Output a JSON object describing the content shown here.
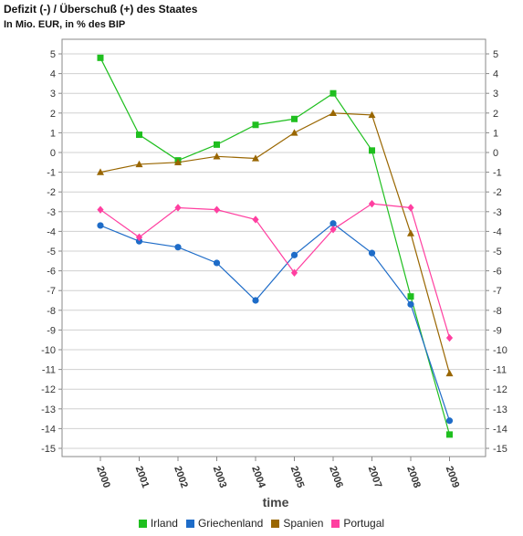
{
  "header": {
    "title": "Defizit (-) / Überschuß (+) des Staates",
    "subtitle": "In Mio. EUR, in % des BIP"
  },
  "chart_data": {
    "type": "line",
    "title": "Defizit (-) / Überschuß (+) des Staates",
    "subtitle": "In Mio. EUR, in % des BIP",
    "xlabel": "time",
    "ylabel": "",
    "ylim": [
      -15,
      5
    ],
    "yticks": [
      5,
      4,
      3,
      2,
      1,
      0,
      -1,
      -2,
      -3,
      -4,
      -5,
      -6,
      -7,
      -8,
      -9,
      -10,
      -11,
      -12,
      -13,
      -14,
      -15
    ],
    "categories": [
      "2000",
      "2001",
      "2002",
      "2003",
      "2004",
      "2005",
      "2006",
      "2007",
      "2008",
      "2009"
    ],
    "grid": "horizontal",
    "legend_position": "bottom",
    "series": [
      {
        "name": "Irland",
        "color": "#1fbf1f",
        "marker": "square",
        "values": [
          4.8,
          0.9,
          -0.4,
          0.4,
          1.4,
          1.7,
          3.0,
          0.1,
          -7.3,
          -14.3
        ]
      },
      {
        "name": "Griechenland",
        "color": "#1e6cc8",
        "marker": "circle",
        "values": [
          -3.7,
          -4.5,
          -4.8,
          -5.6,
          -7.5,
          -5.2,
          -3.6,
          -5.1,
          -7.7,
          -13.6
        ]
      },
      {
        "name": "Spanien",
        "color": "#996600",
        "marker": "triangle",
        "values": [
          -1.0,
          -0.6,
          -0.5,
          -0.2,
          -0.3,
          1.0,
          2.0,
          1.9,
          -4.1,
          -11.2
        ]
      },
      {
        "name": "Portugal",
        "color": "#ff3fa0",
        "marker": "diamond",
        "values": [
          -2.9,
          -4.3,
          -2.8,
          -2.9,
          -3.4,
          -6.1,
          -3.9,
          -2.6,
          -2.8,
          -9.4
        ]
      }
    ]
  }
}
